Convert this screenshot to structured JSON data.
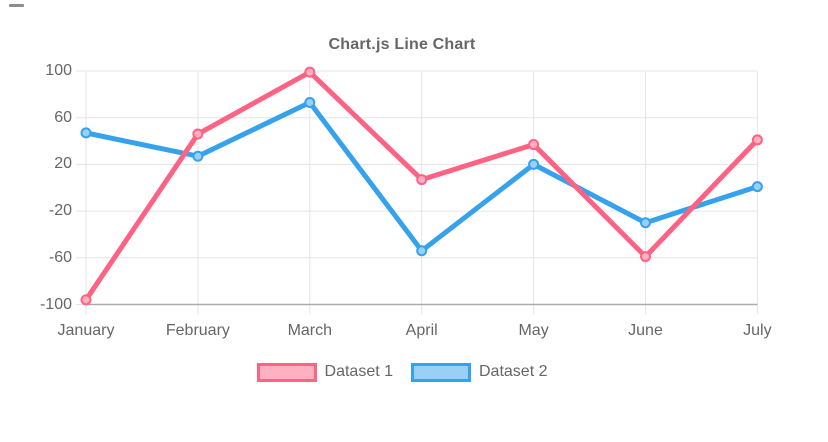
{
  "title": "Chart.js Line Chart",
  "chart_data": {
    "type": "line",
    "title": "Chart.js Line Chart",
    "categories": [
      "January",
      "February",
      "March",
      "April",
      "May",
      "June",
      "July"
    ],
    "series": [
      {
        "name": "Dataset 1",
        "color": "#FF6384",
        "fill_color": "#FFB1C1",
        "values": [
          -96,
          46,
          99,
          7,
          37,
          -59,
          41
        ]
      },
      {
        "name": "Dataset 2",
        "color": "#36A2EB",
        "fill_color": "#9AD0F5",
        "values": [
          47,
          27,
          73,
          -54,
          20,
          -30,
          1
        ]
      }
    ],
    "ylim": [
      -100,
      100
    ],
    "yticks": [
      100,
      60,
      20,
      -20,
      -60,
      -100
    ],
    "ytick_labels": [
      "100",
      "60",
      "20",
      "-20",
      "-60",
      "-100"
    ],
    "grid": true,
    "legend_position": "bottom"
  },
  "colors": {
    "text": "#666666",
    "grid": "#E5E5E5",
    "axis_border": "#ABABAB",
    "background": "#FFFFFF"
  }
}
